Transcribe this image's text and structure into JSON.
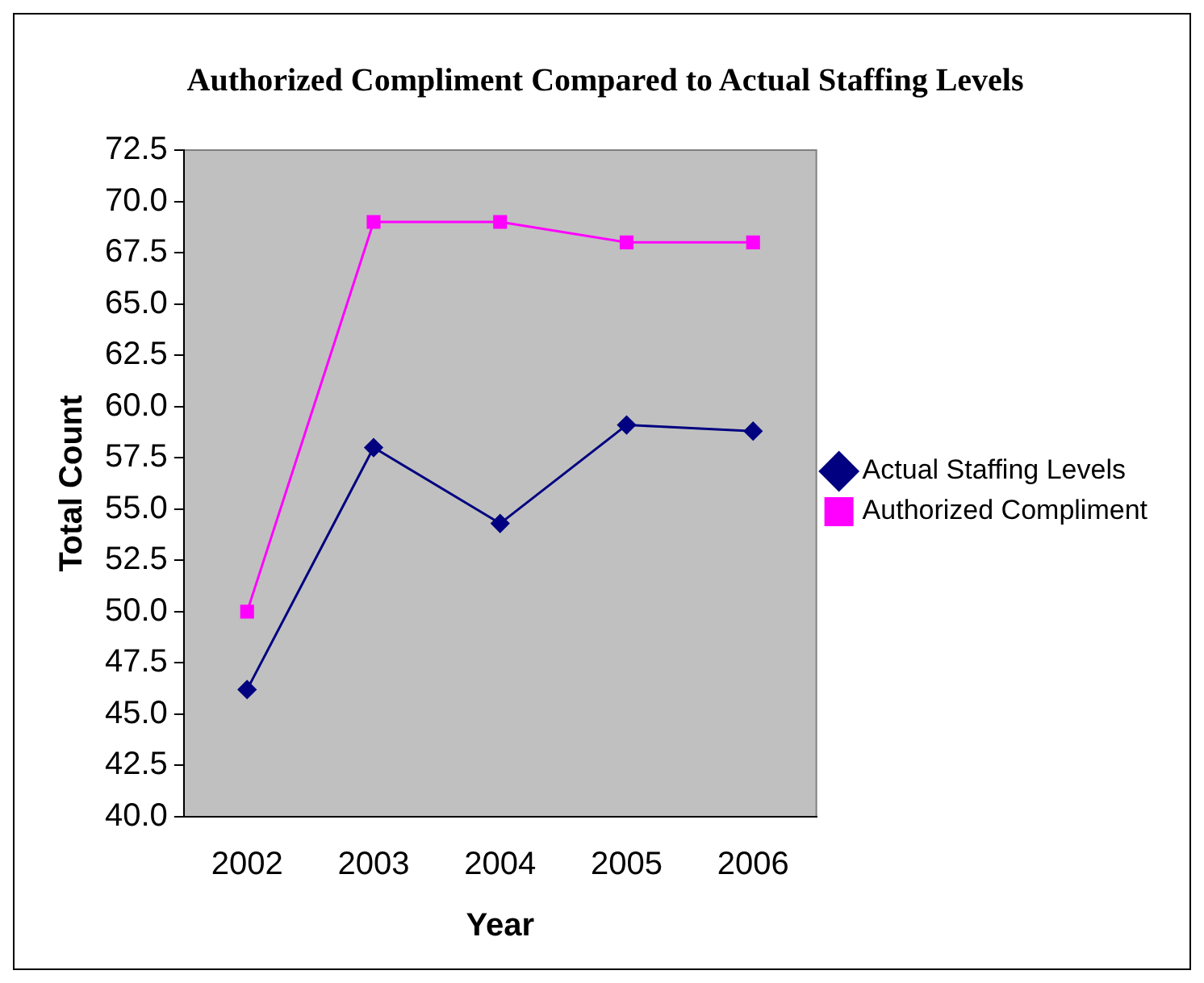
{
  "chart_data": {
    "type": "line",
    "title": "Authorized Compliment Compared to Actual Staffing Levels",
    "xlabel": "Year",
    "ylabel": "Total Count",
    "categories": [
      "2002",
      "2003",
      "2004",
      "2005",
      "2006"
    ],
    "series": [
      {
        "name": "Actual Staffing Levels",
        "color": "#000080",
        "marker": "diamond",
        "values": [
          46.2,
          58.0,
          54.3,
          59.1,
          58.8
        ]
      },
      {
        "name": "Authorized Compliment",
        "color": "#ff00ff",
        "marker": "square",
        "values": [
          50.0,
          69.0,
          69.0,
          68.0,
          68.0
        ]
      }
    ],
    "ylim": [
      40,
      72.5
    ],
    "yticks": [
      {
        "value": 40,
        "label": "40.0"
      },
      {
        "value": 42.5,
        "label": "42.5"
      },
      {
        "value": 45,
        "label": "45.0"
      },
      {
        "value": 47.5,
        "label": "47.5"
      },
      {
        "value": 50,
        "label": "50.0"
      },
      {
        "value": 52.5,
        "label": "52.5"
      },
      {
        "value": 55,
        "label": "55.0"
      },
      {
        "value": 57.5,
        "label": "57.5"
      },
      {
        "value": 60,
        "label": "60.0"
      },
      {
        "value": 62.5,
        "label": "62.5"
      },
      {
        "value": 65,
        "label": "65.0"
      },
      {
        "value": 67.5,
        "label": "67.5"
      },
      {
        "value": 70,
        "label": "70.0"
      },
      {
        "value": 72.5,
        "label": "72.5"
      }
    ],
    "grid": false,
    "legend": "right",
    "line_style": "solid"
  }
}
